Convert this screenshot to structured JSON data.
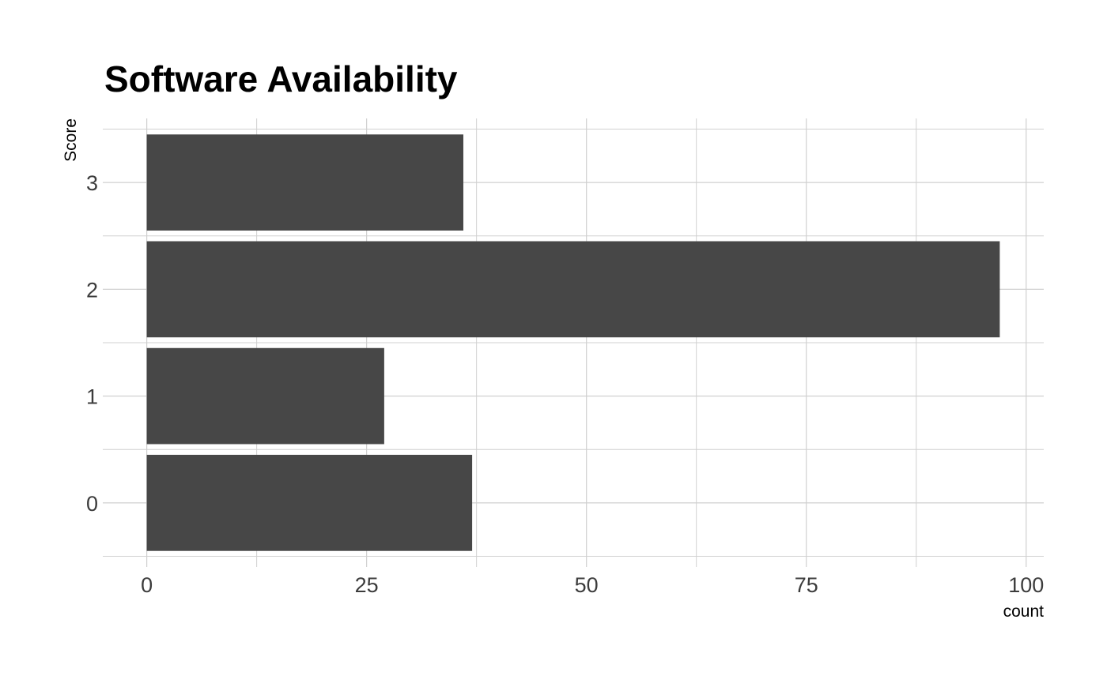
{
  "chart_data": {
    "type": "bar",
    "orientation": "horizontal",
    "title": "Software Availability",
    "xlabel": "count",
    "ylabel": "Score",
    "categories": [
      "0",
      "1",
      "2",
      "3"
    ],
    "values": [
      37,
      27,
      97,
      36
    ],
    "xlim": [
      -5,
      102
    ],
    "xticks": [
      0,
      25,
      50,
      75,
      100
    ],
    "grid": true,
    "legend": "none",
    "bar_color": "#474747",
    "grid_color": "#d0d0d0",
    "background": "#ffffff"
  }
}
